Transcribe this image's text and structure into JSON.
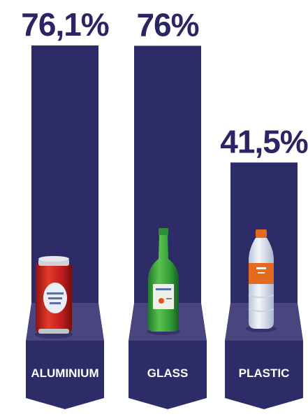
{
  "chart_data": {
    "type": "bar",
    "categories": [
      "ALUMINIUM",
      "GLASS",
      "PLASTIC"
    ],
    "values": [
      76.1,
      76,
      41.5
    ],
    "value_labels": [
      "76,1%",
      "76%",
      "41,5%"
    ],
    "icons": [
      "soda-can-icon",
      "glass-bottle-icon",
      "plastic-bottle-icon"
    ],
    "colors": {
      "bar": "#2e2b69",
      "platform": "#49457f",
      "platform_shadow": "#3a3673",
      "label": "#2b2563"
    }
  }
}
